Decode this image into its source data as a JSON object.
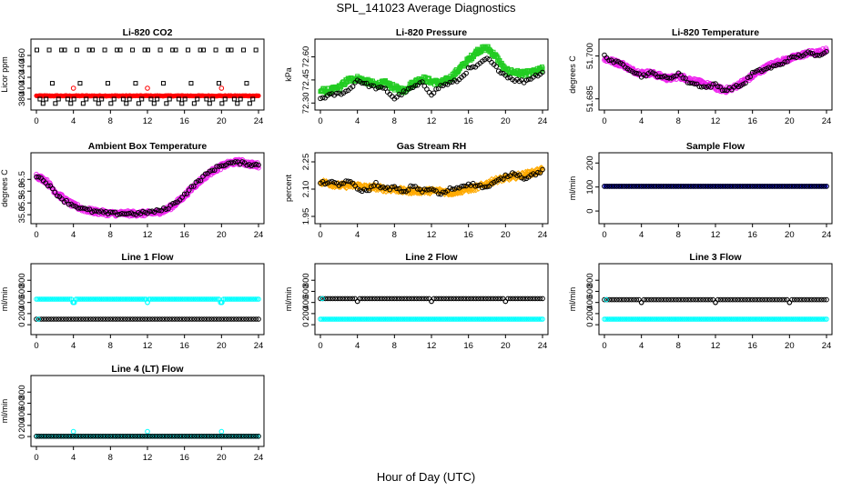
{
  "page": {
    "title": "SPL_141023  Average Diagnostics",
    "xlabel": "Hour of Day (UTC)"
  },
  "colors": {
    "black": "#000000",
    "red": "#ff0000",
    "green": "#22cc22",
    "magenta": "#ee22ee",
    "orange": "#ffaa00",
    "cyan": "#00ffff",
    "blue": "#0000ff"
  },
  "chart_data": [
    {
      "type": "scatter",
      "title": "Li-820 CO2",
      "ylabel": "Licor ppm",
      "xlim": [
        0,
        24
      ],
      "ylim": [
        370,
        480
      ],
      "xticks": [
        "0",
        "4",
        "8",
        "12",
        "16",
        "20",
        "24"
      ],
      "yticks": [
        "380",
        "400",
        "420",
        "440",
        "460"
      ],
      "series": [
        {
          "color": "black",
          "shape": "square",
          "pattern": "co2_squares"
        },
        {
          "color": "red",
          "shape": "circle",
          "pattern": "co2_red"
        }
      ]
    },
    {
      "type": "scatter",
      "title": "Li-820 Pressure",
      "ylabel": "kPa",
      "xlim": [
        0,
        24
      ],
      "ylim": [
        72.29,
        72.68
      ],
      "xticks": [
        "0",
        "4",
        "8",
        "12",
        "16",
        "20",
        "24"
      ],
      "yticks": [
        "72.30",
        "72.45",
        "72.60"
      ],
      "series": [
        {
          "color": "green",
          "shape": "square",
          "dense": true,
          "x": [
            0,
            1,
            2,
            3,
            4,
            5,
            6,
            7,
            8,
            9,
            10,
            11,
            12,
            13,
            14,
            15,
            16,
            17,
            18,
            19,
            20,
            21,
            22,
            23,
            24
          ],
          "y": [
            72.38,
            72.38,
            72.4,
            72.45,
            72.46,
            72.44,
            72.42,
            72.43,
            72.4,
            72.38,
            72.43,
            72.46,
            72.44,
            72.43,
            72.46,
            72.52,
            72.58,
            72.64,
            72.66,
            72.6,
            72.51,
            72.5,
            72.49,
            72.5,
            72.52
          ]
        },
        {
          "color": "black",
          "shape": "circle",
          "x": [
            0,
            1,
            2,
            3,
            4,
            5,
            6,
            7,
            8,
            9,
            10,
            11,
            12,
            13,
            14,
            15,
            16,
            17,
            18,
            19,
            20,
            21,
            22,
            23,
            24
          ],
          "y": [
            72.33,
            72.35,
            72.36,
            72.38,
            72.45,
            72.42,
            72.4,
            72.39,
            72.33,
            72.37,
            72.4,
            72.43,
            72.36,
            72.41,
            72.43,
            72.45,
            72.52,
            72.54,
            72.59,
            72.53,
            72.48,
            72.45,
            72.44,
            72.47,
            72.5
          ]
        }
      ]
    },
    {
      "type": "scatter",
      "title": "Li-820 Temperature",
      "ylabel": "degrees C",
      "xlim": [
        0,
        24
      ],
      "ylim": [
        51.683,
        51.704
      ],
      "xticks": [
        "0",
        "4",
        "8",
        "12",
        "16",
        "20",
        "24"
      ],
      "yticks": [
        "51.685",
        "51.700"
      ],
      "series": [
        {
          "color": "magenta",
          "shape": "circle",
          "dense": true,
          "x": [
            0,
            1,
            2,
            3,
            4,
            5,
            6,
            7,
            8,
            9,
            10,
            11,
            12,
            13,
            14,
            15,
            16,
            17,
            18,
            19,
            20,
            21,
            22,
            23,
            24
          ],
          "y": [
            51.699,
            51.698,
            51.697,
            51.695,
            51.694,
            51.694,
            51.693,
            51.692,
            51.693,
            51.692,
            51.691,
            51.69,
            51.689,
            51.688,
            51.689,
            51.691,
            51.693,
            51.695,
            51.697,
            51.698,
            51.699,
            51.7,
            51.701,
            51.701,
            51.702
          ]
        },
        {
          "color": "black",
          "shape": "circle",
          "x": [
            0,
            1,
            2,
            3,
            4,
            5,
            6,
            7,
            8,
            9,
            10,
            11,
            12,
            13,
            14,
            15,
            16,
            17,
            18,
            19,
            20,
            21,
            22,
            23,
            24
          ],
          "y": [
            51.7,
            51.698,
            51.697,
            51.695,
            51.693,
            51.694,
            51.693,
            51.692,
            51.694,
            51.691,
            51.69,
            51.689,
            51.69,
            51.688,
            51.689,
            51.69,
            51.694,
            51.695,
            51.696,
            51.697,
            51.699,
            51.7,
            51.701,
            51.7,
            51.702
          ]
        }
      ]
    },
    {
      "type": "scatter",
      "title": "Ambient Box Temperature",
      "ylabel": "degrees C",
      "xlim": [
        0,
        24
      ],
      "ylim": [
        34.85,
        37.4
      ],
      "xticks": [
        "0",
        "4",
        "8",
        "12",
        "16",
        "20",
        "24"
      ],
      "yticks": [
        "35.0",
        "35.5",
        "36.0",
        "36.5"
      ],
      "series": [
        {
          "color": "magenta",
          "shape": "circle",
          "dense": true,
          "x": [
            0,
            1,
            2,
            3,
            4,
            5,
            6,
            7,
            8,
            9,
            10,
            11,
            12,
            13,
            14,
            15,
            16,
            17,
            18,
            19,
            20,
            21,
            22,
            23,
            24
          ],
          "y": [
            36.65,
            36.45,
            36.0,
            35.65,
            35.4,
            35.25,
            35.15,
            35.1,
            35.05,
            35.05,
            35.05,
            35.05,
            35.05,
            35.1,
            35.2,
            35.45,
            35.8,
            36.2,
            36.55,
            36.85,
            37.05,
            37.2,
            37.25,
            37.15,
            37.1
          ]
        },
        {
          "color": "black",
          "shape": "circle",
          "x": [
            0,
            1,
            2,
            3,
            4,
            5,
            6,
            7,
            8,
            9,
            10,
            11,
            12,
            13,
            14,
            15,
            16,
            17,
            18,
            19,
            20,
            21,
            22,
            23,
            24
          ],
          "y": [
            36.65,
            36.4,
            35.95,
            35.6,
            35.4,
            35.25,
            35.15,
            35.1,
            35.05,
            35.05,
            35.05,
            35.05,
            35.1,
            35.15,
            35.25,
            35.5,
            35.85,
            36.25,
            36.6,
            36.9,
            37.1,
            37.2,
            37.2,
            37.15,
            37.1
          ]
        }
      ]
    },
    {
      "type": "scatter",
      "title": "Gas Stream RH",
      "ylabel": "percent",
      "xlim": [
        0,
        24
      ],
      "ylim": [
        1.94,
        2.27
      ],
      "xticks": [
        "0",
        "4",
        "8",
        "12",
        "16",
        "20",
        "24"
      ],
      "yticks": [
        "1.95",
        "2.10",
        "2.25"
      ],
      "series": [
        {
          "color": "orange",
          "shape": "diamond",
          "dense": true,
          "x": [
            0,
            1,
            2,
            3,
            4,
            5,
            6,
            7,
            8,
            9,
            10,
            11,
            12,
            13,
            14,
            15,
            16,
            17,
            18,
            19,
            20,
            21,
            22,
            23,
            24
          ],
          "y": [
            2.14,
            2.13,
            2.12,
            2.12,
            2.12,
            2.11,
            2.11,
            2.1,
            2.1,
            2.09,
            2.09,
            2.09,
            2.09,
            2.09,
            2.08,
            2.09,
            2.1,
            2.11,
            2.13,
            2.15,
            2.16,
            2.17,
            2.18,
            2.19,
            2.21
          ]
        },
        {
          "color": "black",
          "shape": "circle",
          "x": [
            0,
            1,
            2,
            3,
            4,
            5,
            6,
            7,
            8,
            9,
            10,
            11,
            12,
            13,
            14,
            15,
            16,
            17,
            18,
            19,
            20,
            21,
            22,
            23,
            24
          ],
          "y": [
            2.13,
            2.14,
            2.12,
            2.15,
            2.1,
            2.09,
            2.13,
            2.1,
            2.11,
            2.08,
            2.12,
            2.09,
            2.1,
            2.07,
            2.1,
            2.11,
            2.13,
            2.12,
            2.11,
            2.14,
            2.17,
            2.19,
            2.16,
            2.18,
            2.2
          ]
        }
      ]
    },
    {
      "type": "scatter",
      "title": "Sample Flow",
      "ylabel": "ml/min",
      "xlim": [
        0,
        24
      ],
      "ylim": [
        -30,
        220
      ],
      "xticks": [
        "0",
        "4",
        "8",
        "12",
        "16",
        "20",
        "24"
      ],
      "yticks": [
        "0",
        "100",
        "200"
      ],
      "series": [
        {
          "color": "blue",
          "shape": "circle",
          "dense": true,
          "constant": 103
        },
        {
          "color": "black",
          "shape": "circle",
          "constant": 103
        }
      ]
    },
    {
      "type": "scatter",
      "title": "Line 1 Flow",
      "ylabel": "ml/min",
      "xlim": [
        0,
        24
      ],
      "ylim": [
        -80,
        1000
      ],
      "xticks": [
        "0",
        "4",
        "8",
        "12",
        "16",
        "20",
        "24"
      ],
      "yticks": [
        "0",
        "200",
        "400",
        "600",
        "800"
      ],
      "series": [
        {
          "color": "cyan",
          "shape": "circle",
          "dense": true,
          "constant": 460,
          "dips": [
            [
              4,
              400
            ],
            [
              12,
              400
            ],
            [
              20,
              400
            ]
          ]
        },
        {
          "color": "black",
          "shape": "circle",
          "constant": 100
        },
        {
          "color": "cyan",
          "shape": "circle",
          "points": [
            [
              0.2,
              100
            ]
          ]
        }
      ]
    },
    {
      "type": "scatter",
      "title": "Line 2 Flow",
      "ylabel": "ml/min",
      "xlim": [
        0,
        24
      ],
      "ylim": [
        -80,
        1000
      ],
      "xticks": [
        "0",
        "4",
        "8",
        "12",
        "16",
        "20",
        "24"
      ],
      "yticks": [
        "0",
        "200",
        "400",
        "600",
        "800"
      ],
      "series": [
        {
          "color": "cyan",
          "shape": "circle",
          "dense": true,
          "constant": 100
        },
        {
          "color": "black",
          "shape": "circle",
          "constant": 470,
          "dips": [
            [
              4,
              420
            ],
            [
              12,
              420
            ],
            [
              20,
              420
            ]
          ]
        },
        {
          "color": "cyan",
          "shape": "circle",
          "points": [
            [
              0.2,
              470
            ]
          ]
        }
      ]
    },
    {
      "type": "scatter",
      "title": "Line 3 Flow",
      "ylabel": "ml/min",
      "xlim": [
        0,
        24
      ],
      "ylim": [
        -80,
        1000
      ],
      "xticks": [
        "0",
        "4",
        "8",
        "12",
        "16",
        "20",
        "24"
      ],
      "yticks": [
        "0",
        "200",
        "400",
        "600",
        "800"
      ],
      "series": [
        {
          "color": "cyan",
          "shape": "circle",
          "dense": true,
          "constant": 100
        },
        {
          "color": "black",
          "shape": "circle",
          "constant": 450,
          "dips": [
            [
              4,
              400
            ],
            [
              12,
              400
            ],
            [
              20,
              400
            ]
          ]
        },
        {
          "color": "cyan",
          "shape": "circle",
          "points": [
            [
              0.2,
              450
            ]
          ]
        }
      ]
    },
    {
      "type": "scatter",
      "title": "Line 4 (LT) Flow",
      "ylabel": "ml/min",
      "xlim": [
        0,
        24
      ],
      "ylim": [
        -80,
        1000
      ],
      "xticks": [
        "0",
        "4",
        "8",
        "12",
        "16",
        "20",
        "24"
      ],
      "yticks": [
        "0",
        "200",
        "400",
        "600",
        "800"
      ],
      "series": [
        {
          "color": "cyan",
          "shape": "circle",
          "dense": true,
          "constant": 5,
          "bumps": [
            [
              4,
              90
            ],
            [
              12,
              90
            ],
            [
              20,
              90
            ]
          ]
        },
        {
          "color": "black",
          "shape": "circle",
          "constant": 5
        }
      ]
    }
  ]
}
